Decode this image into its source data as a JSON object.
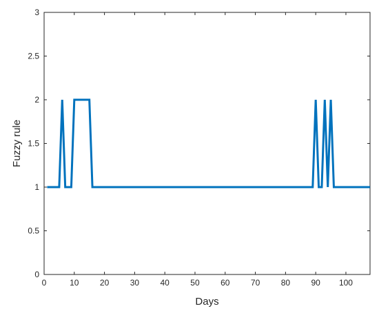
{
  "chart_data": {
    "type": "line",
    "title": "",
    "xlabel": "Days",
    "ylabel": "Fuzzy rule",
    "xlim": [
      0,
      108
    ],
    "ylim": [
      0,
      3
    ],
    "xticks": [
      0,
      10,
      20,
      30,
      40,
      50,
      60,
      70,
      80,
      90,
      100
    ],
    "yticks": [
      0,
      0.5,
      1,
      1.5,
      2,
      2.5,
      3
    ],
    "xtick_labels": [
      "0",
      "10",
      "20",
      "30",
      "40",
      "50",
      "60",
      "70",
      "80",
      "90",
      "100"
    ],
    "ytick_labels": [
      "0",
      "0.5",
      "1",
      "1.5",
      "2",
      "2.5",
      "3"
    ],
    "grid": false,
    "series": [
      {
        "color": "#0072BD",
        "x": [
          1,
          5,
          6,
          7,
          8,
          9,
          10,
          11,
          12,
          13,
          14,
          15,
          16,
          17,
          30,
          50,
          70,
          89,
          90,
          91,
          92,
          93,
          94,
          95,
          96,
          97,
          108
        ],
        "y": [
          1,
          1,
          2,
          1,
          1,
          1,
          2,
          2,
          2,
          2,
          2,
          2,
          1,
          1,
          1,
          1,
          1,
          1,
          2,
          1,
          1,
          2,
          1,
          2,
          1,
          1,
          1
        ]
      }
    ]
  }
}
